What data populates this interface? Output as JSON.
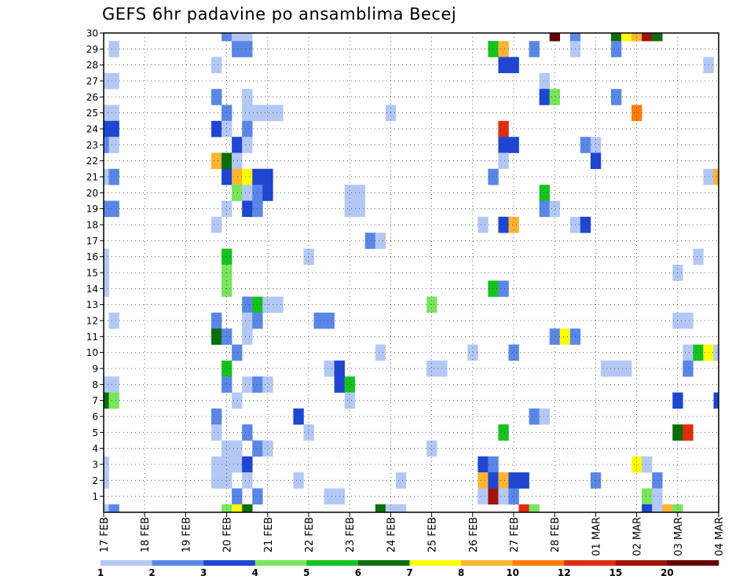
{
  "title": "GEFS 6hr padavine po ansamblima Becej",
  "chart_data": {
    "type": "heatmap",
    "title": "GEFS 6hr padavine po ansamblima Becej",
    "y_labels": [
      "1",
      "2",
      "3",
      "4",
      "5",
      "6",
      "7",
      "8",
      "9",
      "10",
      "11",
      "12",
      "13",
      "14",
      "15",
      "16",
      "17",
      "18",
      "19",
      "20",
      "21",
      "22",
      "23",
      "24",
      "25",
      "26",
      "27",
      "28",
      "29",
      "30"
    ],
    "x_labels": [
      "17 FEB",
      "18 FEB",
      "19 FEB",
      "20 FEB",
      "21 FEB",
      "22 FEB",
      "23 FEB",
      "24 FEB",
      "25 FEB",
      "26 FEB",
      "27 FEB",
      "28 FEB",
      "01 MAR",
      "02 MAR",
      "03 MAR",
      "04 MAR"
    ],
    "x_steps_per_day": 4,
    "x_range_steps": [
      0,
      60
    ],
    "colorbar": {
      "labels": [
        "1",
        "2",
        "3",
        "4",
        "5",
        "6",
        "7",
        "8",
        "10",
        "12",
        "15",
        "20"
      ],
      "colors": [
        "#b4c8f5",
        "#5a87e6",
        "#1e46d2",
        "#78e65a",
        "#14c31e",
        "#0a6e0a",
        "#ffff00",
        "#ffb432",
        "#ff7d0a",
        "#e12d0a",
        "#a0140a",
        "#640000"
      ]
    },
    "cells": [
      [
        30,
        12,
        1
      ],
      [
        30,
        13,
        0
      ],
      [
        30,
        14,
        0
      ],
      [
        30,
        44,
        11
      ],
      [
        30,
        46,
        1
      ],
      [
        30,
        50,
        5
      ],
      [
        30,
        51,
        6
      ],
      [
        30,
        52,
        7
      ],
      [
        30,
        53,
        10
      ],
      [
        30,
        54,
        5
      ],
      [
        29,
        1,
        0
      ],
      [
        29,
        13,
        1
      ],
      [
        29,
        14,
        1
      ],
      [
        29,
        38,
        4
      ],
      [
        29,
        39,
        7
      ],
      [
        29,
        42,
        1
      ],
      [
        29,
        46,
        0
      ],
      [
        29,
        50,
        1
      ],
      [
        28,
        11,
        0
      ],
      [
        28,
        39,
        2
      ],
      [
        28,
        40,
        2
      ],
      [
        28,
        59,
        0
      ],
      [
        27,
        0,
        0
      ],
      [
        27,
        1,
        0
      ],
      [
        27,
        43,
        0
      ],
      [
        26,
        11,
        1
      ],
      [
        26,
        14,
        0
      ],
      [
        26,
        43,
        2
      ],
      [
        26,
        44,
        3
      ],
      [
        26,
        50,
        1
      ],
      [
        25,
        0,
        0
      ],
      [
        25,
        1,
        0
      ],
      [
        25,
        12,
        1
      ],
      [
        25,
        14,
        0
      ],
      [
        25,
        15,
        0
      ],
      [
        25,
        16,
        0
      ],
      [
        25,
        17,
        0
      ],
      [
        25,
        28,
        0
      ],
      [
        25,
        52,
        8
      ],
      [
        24,
        0,
        2
      ],
      [
        24,
        1,
        2
      ],
      [
        24,
        11,
        2
      ],
      [
        24,
        12,
        0
      ],
      [
        24,
        14,
        1
      ],
      [
        24,
        39,
        9
      ],
      [
        23,
        0,
        1
      ],
      [
        23,
        1,
        0
      ],
      [
        23,
        13,
        2
      ],
      [
        23,
        14,
        0
      ],
      [
        23,
        39,
        2
      ],
      [
        23,
        40,
        2
      ],
      [
        23,
        47,
        1
      ],
      [
        23,
        48,
        0
      ],
      [
        22,
        11,
        7
      ],
      [
        22,
        12,
        5
      ],
      [
        22,
        13,
        0
      ],
      [
        22,
        39,
        0
      ],
      [
        22,
        48,
        2
      ],
      [
        21,
        0,
        0
      ],
      [
        21,
        1,
        1
      ],
      [
        21,
        12,
        2
      ],
      [
        21,
        13,
        7
      ],
      [
        21,
        14,
        6
      ],
      [
        21,
        15,
        2
      ],
      [
        21,
        16,
        2
      ],
      [
        21,
        38,
        1
      ],
      [
        21,
        59,
        0
      ],
      [
        21,
        60,
        7
      ],
      [
        20,
        13,
        3
      ],
      [
        20,
        14,
        0
      ],
      [
        20,
        15,
        1
      ],
      [
        20,
        16,
        2
      ],
      [
        20,
        24,
        0
      ],
      [
        20,
        25,
        0
      ],
      [
        20,
        43,
        4
      ],
      [
        19,
        0,
        1
      ],
      [
        19,
        1,
        1
      ],
      [
        19,
        12,
        0
      ],
      [
        19,
        14,
        2
      ],
      [
        19,
        15,
        1
      ],
      [
        19,
        24,
        0
      ],
      [
        19,
        25,
        0
      ],
      [
        19,
        43,
        1
      ],
      [
        19,
        44,
        0
      ],
      [
        18,
        11,
        0
      ],
      [
        18,
        37,
        0
      ],
      [
        18,
        39,
        2
      ],
      [
        18,
        40,
        7
      ],
      [
        18,
        46,
        0
      ],
      [
        18,
        47,
        2
      ],
      [
        17,
        26,
        1
      ],
      [
        17,
        27,
        0
      ],
      [
        16,
        0,
        0
      ],
      [
        16,
        12,
        4
      ],
      [
        16,
        20,
        0
      ],
      [
        16,
        58,
        0
      ],
      [
        15,
        0,
        0
      ],
      [
        15,
        12,
        3
      ],
      [
        15,
        56,
        0
      ],
      [
        14,
        0,
        0
      ],
      [
        14,
        12,
        3
      ],
      [
        14,
        38,
        4
      ],
      [
        14,
        39,
        1
      ],
      [
        13,
        14,
        1
      ],
      [
        13,
        15,
        4
      ],
      [
        13,
        16,
        0
      ],
      [
        13,
        17,
        0
      ],
      [
        13,
        32,
        3
      ],
      [
        12,
        1,
        0
      ],
      [
        12,
        11,
        1
      ],
      [
        12,
        14,
        0
      ],
      [
        12,
        15,
        1
      ],
      [
        12,
        21,
        1
      ],
      [
        12,
        22,
        1
      ],
      [
        12,
        56,
        0
      ],
      [
        12,
        57,
        0
      ],
      [
        11,
        11,
        5
      ],
      [
        11,
        12,
        1
      ],
      [
        11,
        14,
        0
      ],
      [
        11,
        44,
        1
      ],
      [
        11,
        45,
        6
      ],
      [
        11,
        46,
        1
      ],
      [
        10,
        13,
        1
      ],
      [
        10,
        27,
        0
      ],
      [
        10,
        36,
        0
      ],
      [
        10,
        40,
        1
      ],
      [
        10,
        57,
        0
      ],
      [
        10,
        58,
        4
      ],
      [
        10,
        59,
        6
      ],
      [
        10,
        60,
        0
      ],
      [
        9,
        12,
        4
      ],
      [
        9,
        22,
        0
      ],
      [
        9,
        23,
        2
      ],
      [
        9,
        32,
        0
      ],
      [
        9,
        33,
        0
      ],
      [
        9,
        49,
        0
      ],
      [
        9,
        50,
        0
      ],
      [
        9,
        51,
        0
      ],
      [
        9,
        57,
        1
      ],
      [
        8,
        0,
        0
      ],
      [
        8,
        1,
        0
      ],
      [
        8,
        12,
        1
      ],
      [
        8,
        14,
        0
      ],
      [
        8,
        15,
        1
      ],
      [
        8,
        16,
        0
      ],
      [
        8,
        23,
        2
      ],
      [
        8,
        24,
        4
      ],
      [
        7,
        0,
        5
      ],
      [
        7,
        1,
        3
      ],
      [
        7,
        13,
        0
      ],
      [
        7,
        24,
        0
      ],
      [
        7,
        56,
        2
      ],
      [
        7,
        60,
        2
      ],
      [
        6,
        11,
        1
      ],
      [
        6,
        19,
        2
      ],
      [
        6,
        42,
        1
      ],
      [
        6,
        43,
        0
      ],
      [
        5,
        11,
        0
      ],
      [
        5,
        14,
        1
      ],
      [
        5,
        20,
        0
      ],
      [
        5,
        39,
        4
      ],
      [
        5,
        56,
        5
      ],
      [
        5,
        57,
        9
      ],
      [
        4,
        12,
        0
      ],
      [
        4,
        13,
        0
      ],
      [
        4,
        15,
        1
      ],
      [
        4,
        16,
        0
      ],
      [
        4,
        32,
        0
      ],
      [
        3,
        0,
        0
      ],
      [
        3,
        11,
        0
      ],
      [
        3,
        12,
        0
      ],
      [
        3,
        13,
        0
      ],
      [
        3,
        14,
        2
      ],
      [
        3,
        37,
        2
      ],
      [
        3,
        38,
        1
      ],
      [
        3,
        52,
        6
      ],
      [
        3,
        53,
        0
      ],
      [
        2,
        0,
        0
      ],
      [
        2,
        11,
        0
      ],
      [
        2,
        12,
        0
      ],
      [
        2,
        14,
        0
      ],
      [
        2,
        19,
        0
      ],
      [
        2,
        29,
        0
      ],
      [
        2,
        37,
        7
      ],
      [
        2,
        38,
        2
      ],
      [
        2,
        39,
        7
      ],
      [
        2,
        40,
        2
      ],
      [
        2,
        41,
        2
      ],
      [
        2,
        48,
        1
      ],
      [
        2,
        54,
        1
      ],
      [
        1,
        13,
        1
      ],
      [
        1,
        15,
        1
      ],
      [
        1,
        22,
        0
      ],
      [
        1,
        23,
        0
      ],
      [
        1,
        37,
        0
      ],
      [
        1,
        38,
        10
      ],
      [
        1,
        39,
        0
      ],
      [
        1,
        40,
        1
      ],
      [
        1,
        53,
        3
      ],
      [
        1,
        54,
        0
      ],
      [
        0,
        0,
        0
      ],
      [
        0,
        1,
        1
      ],
      [
        0,
        12,
        3
      ],
      [
        0,
        13,
        6
      ],
      [
        0,
        14,
        5
      ],
      [
        0,
        27,
        5
      ],
      [
        0,
        28,
        0
      ],
      [
        0,
        29,
        0
      ],
      [
        0,
        41,
        9
      ],
      [
        0,
        42,
        3
      ],
      [
        0,
        53,
        2
      ],
      [
        0,
        54,
        0
      ],
      [
        0,
        55,
        7
      ],
      [
        0,
        56,
        3
      ]
    ]
  }
}
